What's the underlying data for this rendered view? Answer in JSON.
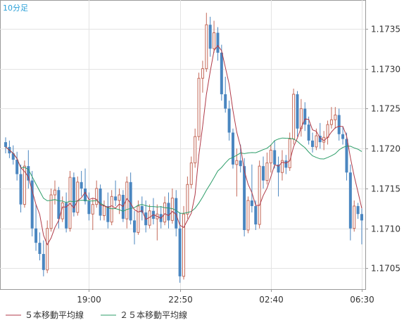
{
  "chart_data": {
    "type": "candlestick",
    "timeframe_label": "10分足",
    "y_ticks": [
      "1.1735",
      "1.1730",
      "1.1725",
      "1.1720",
      "1.1715",
      "1.1710",
      "1.1705"
    ],
    "x_ticks": [
      "19:00",
      "22:50",
      "02:40",
      "06:30"
    ],
    "ylim": [
      1.17024,
      1.17386
    ],
    "grid": true,
    "legend": [
      {
        "label": "５本移動平均線",
        "color": "#b03a48"
      },
      {
        "label": "２５本移動平均線",
        "color": "#2e9e6a"
      }
    ],
    "colors": {
      "up": "#c46a5a",
      "down": "#4a86c0",
      "ma5": "#b03a48",
      "ma25": "#2e9e6a"
    },
    "candles": [
      [
        1.17208,
        1.17214,
        1.17194,
        1.17202
      ],
      [
        1.17202,
        1.1721,
        1.17188,
        1.17194
      ],
      [
        1.17194,
        1.17204,
        1.1718,
        1.17186
      ],
      [
        1.17186,
        1.17196,
        1.1716,
        1.17168
      ],
      [
        1.17168,
        1.1718,
        1.1712,
        1.1713
      ],
      [
        1.1713,
        1.17185,
        1.17126,
        1.17178
      ],
      [
        1.17178,
        1.17198,
        1.1715,
        1.1716
      ],
      [
        1.1716,
        1.17172,
        1.1709,
        1.171
      ],
      [
        1.171,
        1.1713,
        1.17072,
        1.17082
      ],
      [
        1.17082,
        1.17095,
        1.1706,
        1.17068
      ],
      [
        1.17068,
        1.17085,
        1.1704,
        1.17048
      ],
      [
        1.17048,
        1.1711,
        1.17044,
        1.171
      ],
      [
        1.171,
        1.1715,
        1.17096,
        1.17142
      ],
      [
        1.17142,
        1.1716,
        1.1713,
        1.17148
      ],
      [
        1.17148,
        1.17152,
        1.171,
        1.17112
      ],
      [
        1.17112,
        1.1714,
        1.17108,
        1.17132
      ],
      [
        1.17132,
        1.17145,
        1.17095,
        1.171
      ],
      [
        1.171,
        1.17172,
        1.17096,
        1.17164
      ],
      [
        1.17164,
        1.1717,
        1.17115,
        1.1712
      ],
      [
        1.1712,
        1.17165,
        1.17116,
        1.17158
      ],
      [
        1.17158,
        1.17172,
        1.1714,
        1.1715
      ],
      [
        1.1715,
        1.17175,
        1.1713,
        1.17134
      ],
      [
        1.17134,
        1.17145,
        1.1711,
        1.17118
      ],
      [
        1.17118,
        1.17138,
        1.17098,
        1.1713
      ],
      [
        1.1713,
        1.1716,
        1.17126,
        1.1715
      ],
      [
        1.1715,
        1.17155,
        1.1711,
        1.17116
      ],
      [
        1.17116,
        1.17135,
        1.1711,
        1.17128
      ],
      [
        1.17128,
        1.17145,
        1.171,
        1.17108
      ],
      [
        1.17108,
        1.17148,
        1.17104,
        1.1714
      ],
      [
        1.1714,
        1.1716,
        1.17128,
        1.17135
      ],
      [
        1.17135,
        1.1715,
        1.17118,
        1.17142
      ],
      [
        1.17142,
        1.17148,
        1.17108,
        1.17112
      ],
      [
        1.17112,
        1.17165,
        1.171,
        1.17158
      ],
      [
        1.17158,
        1.1717,
        1.17105,
        1.1711
      ],
      [
        1.1711,
        1.17122,
        1.1708,
        1.17095
      ],
      [
        1.17095,
        1.17135,
        1.17092,
        1.17128
      ],
      [
        1.17128,
        1.1714,
        1.1711,
        1.1712
      ],
      [
        1.1712,
        1.17135,
        1.17095,
        1.17104
      ],
      [
        1.17104,
        1.1713,
        1.171,
        1.17122
      ],
      [
        1.17122,
        1.17138,
        1.17105,
        1.17112
      ],
      [
        1.17112,
        1.1713,
        1.17085,
        1.17118
      ],
      [
        1.17118,
        1.17128,
        1.171,
        1.17108
      ],
      [
        1.17108,
        1.1714,
        1.17104,
        1.17132
      ],
      [
        1.17132,
        1.17145,
        1.171,
        1.1711
      ],
      [
        1.1711,
        1.1715,
        1.17106,
        1.17138
      ],
      [
        1.17138,
        1.17148,
        1.1709,
        1.171
      ],
      [
        1.171,
        1.1712,
        1.17032,
        1.1704
      ],
      [
        1.1704,
        1.17128,
        1.17036,
        1.17118
      ],
      [
        1.17118,
        1.17165,
        1.17112,
        1.17155
      ],
      [
        1.17155,
        1.1719,
        1.1715,
        1.17182
      ],
      [
        1.17182,
        1.17225,
        1.17176,
        1.17215
      ],
      [
        1.17215,
        1.17295,
        1.1721,
        1.17288
      ],
      [
        1.17288,
        1.1731,
        1.1727,
        1.173
      ],
      [
        1.173,
        1.1737,
        1.17296,
        1.17355
      ],
      [
        1.17355,
        1.17365,
        1.17315,
        1.17325
      ],
      [
        1.17325,
        1.1736,
        1.1732,
        1.17345
      ],
      [
        1.17345,
        1.17352,
        1.1731,
        1.1732
      ],
      [
        1.1732,
        1.1733,
        1.1726,
        1.17268
      ],
      [
        1.17268,
        1.1729,
        1.17245,
        1.1725
      ],
      [
        1.1725,
        1.1726,
        1.1721,
        1.1722
      ],
      [
        1.1722,
        1.17225,
        1.17175,
        1.1718
      ],
      [
        1.1718,
        1.172,
        1.1714,
        1.17185
      ],
      [
        1.17185,
        1.17205,
        1.1717,
        1.17178
      ],
      [
        1.17178,
        1.17188,
        1.1709,
        1.17098
      ],
      [
        1.17098,
        1.1714,
        1.17094,
        1.17135
      ],
      [
        1.17135,
        1.1718,
        1.1712,
        1.17128
      ],
      [
        1.17128,
        1.17135,
        1.17098,
        1.17105
      ],
      [
        1.17105,
        1.17185,
        1.171,
        1.17178
      ],
      [
        1.17178,
        1.1719,
        1.1715,
        1.1716
      ],
      [
        1.1716,
        1.17195,
        1.17155,
        1.17182
      ],
      [
        1.17182,
        1.17205,
        1.1717,
        1.17198
      ],
      [
        1.17198,
        1.1721,
        1.17175,
        1.1718
      ],
      [
        1.1718,
        1.1719,
        1.1714,
        1.1717
      ],
      [
        1.1717,
        1.17198,
        1.1716,
        1.17185
      ],
      [
        1.17185,
        1.17192,
        1.17168,
        1.17176
      ],
      [
        1.17176,
        1.1722,
        1.17172,
        1.17212
      ],
      [
        1.17212,
        1.17275,
        1.17205,
        1.17268
      ],
      [
        1.17268,
        1.17272,
        1.17215,
        1.17225
      ],
      [
        1.17225,
        1.17262,
        1.17215,
        1.1725
      ],
      [
        1.1725,
        1.17258,
        1.17222,
        1.1723
      ],
      [
        1.1723,
        1.1724,
        1.17205,
        1.1721
      ],
      [
        1.1721,
        1.1722,
        1.17195,
        1.17202
      ],
      [
        1.17202,
        1.17225,
        1.17198,
        1.17216
      ],
      [
        1.17216,
        1.17232,
        1.172,
        1.17208
      ],
      [
        1.17208,
        1.17222,
        1.17198,
        1.17214
      ],
      [
        1.17214,
        1.17235,
        1.17205,
        1.1723
      ],
      [
        1.1723,
        1.17252,
        1.17225,
        1.17236
      ],
      [
        1.17236,
        1.17252,
        1.17225,
        1.17242
      ],
      [
        1.17242,
        1.1725,
        1.1721,
        1.17218
      ],
      [
        1.17218,
        1.17228,
        1.17205,
        1.17212
      ],
      [
        1.17212,
        1.1722,
        1.1716,
        1.1717
      ],
      [
        1.1717,
        1.1718,
        1.17085,
        1.171
      ],
      [
        1.171,
        1.17135,
        1.17096,
        1.17128
      ],
      [
        1.17128,
        1.17132,
        1.17112,
        1.17118
      ],
      [
        1.17118,
        1.17125,
        1.1708,
        1.1711
      ]
    ]
  }
}
